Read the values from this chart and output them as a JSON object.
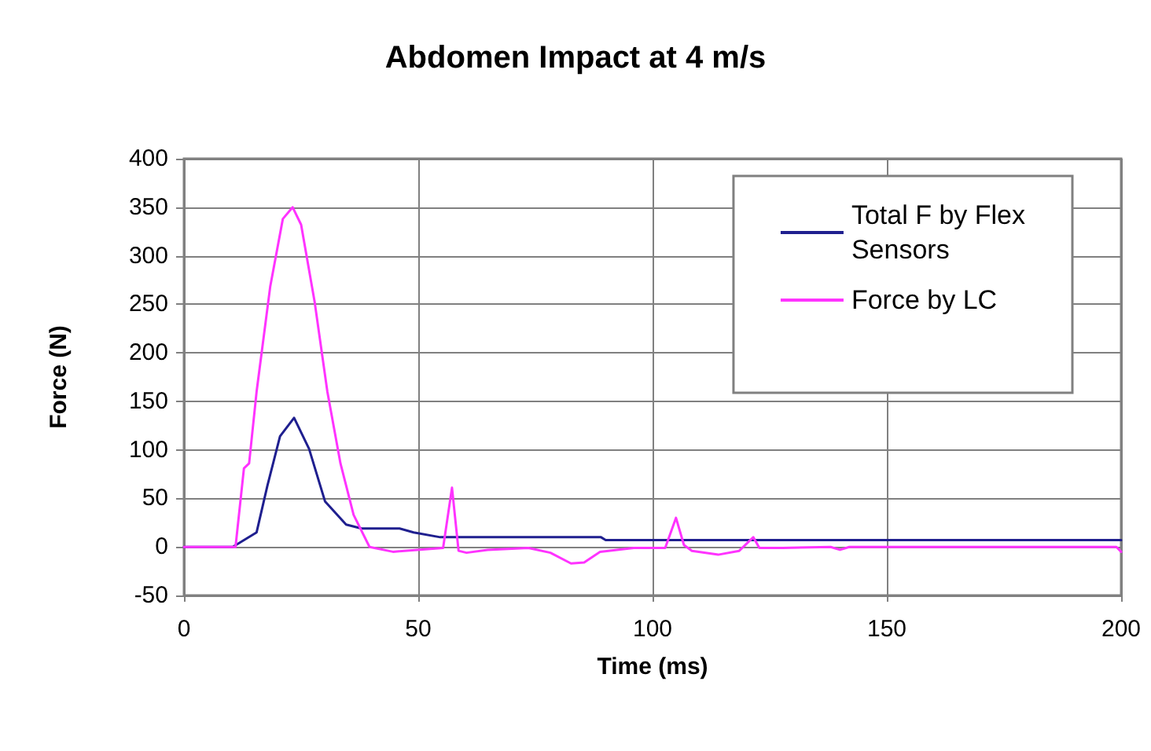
{
  "chart_data": {
    "type": "line",
    "title": "Abdomen Impact at 4 m/s",
    "xlabel": "Time (ms)",
    "ylabel": "Force (N)",
    "xlim": [
      0,
      200
    ],
    "xticks": [
      0,
      50,
      100,
      150,
      200
    ],
    "ylim": [
      -50,
      400
    ],
    "yticks": [
      -50,
      0,
      50,
      100,
      150,
      200,
      250,
      300,
      350,
      400
    ],
    "grid": true,
    "legend": "top right",
    "marker": "none",
    "line_style": "solid",
    "series": [
      {
        "name": "Total F by Flex Sensors",
        "color": "#1f1f8f",
        "x": [
          0,
          10.4,
          15.5,
          17.8,
          20.5,
          23.5,
          26.7,
          30.1,
          34.6,
          37.9,
          46,
          49,
          54.7,
          89,
          90,
          200
        ],
        "values": [
          0,
          0,
          15,
          63,
          114,
          133,
          101,
          47,
          23,
          19,
          19,
          15,
          10,
          10,
          7,
          7
        ]
      },
      {
        "name": "Force by LC",
        "color": "#ff33ff",
        "x": [
          0,
          11,
          12.8,
          13.9,
          15.5,
          18.4,
          21.1,
          23.2,
          25,
          27.9,
          30.6,
          33.4,
          36.2,
          39.6,
          44.6,
          55.3,
          57.2,
          58.6,
          60.3,
          64.8,
          73.5,
          78.2,
          82.6,
          85.4,
          88.8,
          96,
          102.7,
          105,
          106.7,
          108.4,
          114,
          118.5,
          121.5,
          122.8,
          127.8,
          138,
          140,
          142,
          199,
          200
        ],
        "values": [
          0,
          0,
          81,
          86,
          160,
          268,
          338,
          350,
          332,
          252,
          160,
          86,
          33,
          0,
          -5,
          -1,
          61,
          -4,
          -6,
          -3,
          -1,
          -6,
          -17,
          -16,
          -5,
          -1,
          -1,
          30,
          2,
          -4,
          -8,
          -4,
          10,
          -1,
          -1,
          0,
          -3,
          0,
          0,
          -5
        ]
      }
    ]
  }
}
